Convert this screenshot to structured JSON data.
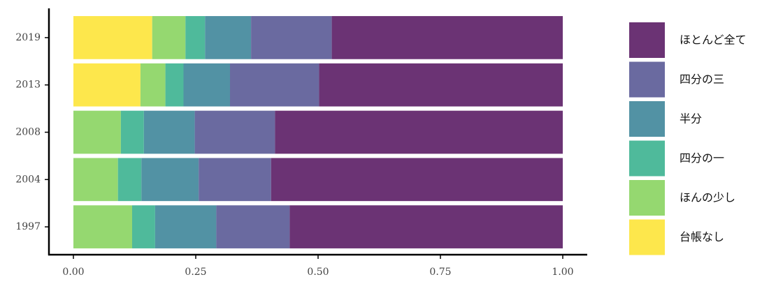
{
  "chart_data": {
    "type": "stacked-barh",
    "categories": [
      "1997",
      "2004",
      "2008",
      "2013",
      "2019"
    ],
    "series": [
      {
        "name": "台帳なし",
        "color": "#fde74c",
        "values": [
          0,
          0,
          0,
          0.137,
          0.161
        ]
      },
      {
        "name": "ほんの少し",
        "color": "#95d870",
        "values": [
          0.12,
          0.091,
          0.097,
          0.051,
          0.068
        ]
      },
      {
        "name": "四分の一",
        "color": "#4fba9b",
        "values": [
          0.047,
          0.048,
          0.047,
          0.037,
          0.04
        ]
      },
      {
        "name": "半分",
        "color": "#5292a4",
        "values": [
          0.125,
          0.117,
          0.104,
          0.095,
          0.094
        ]
      },
      {
        "name": "四分の三",
        "color": "#6a6aa0",
        "values": [
          0.15,
          0.148,
          0.164,
          0.182,
          0.165
        ]
      },
      {
        "name": "ほとんど全て",
        "color": "#6b3374",
        "values": [
          0.558,
          0.596,
          0.588,
          0.498,
          0.472
        ]
      }
    ],
    "xlim": [
      -0.05,
      1.05
    ],
    "xticks": [
      {
        "value": 0,
        "label": "0.00"
      },
      {
        "value": 0.25,
        "label": "0.25"
      },
      {
        "value": 0.5,
        "label": "0.50"
      },
      {
        "value": 0.75,
        "label": "0.75"
      },
      {
        "value": 1,
        "label": "1.00"
      }
    ],
    "legend": "right"
  }
}
